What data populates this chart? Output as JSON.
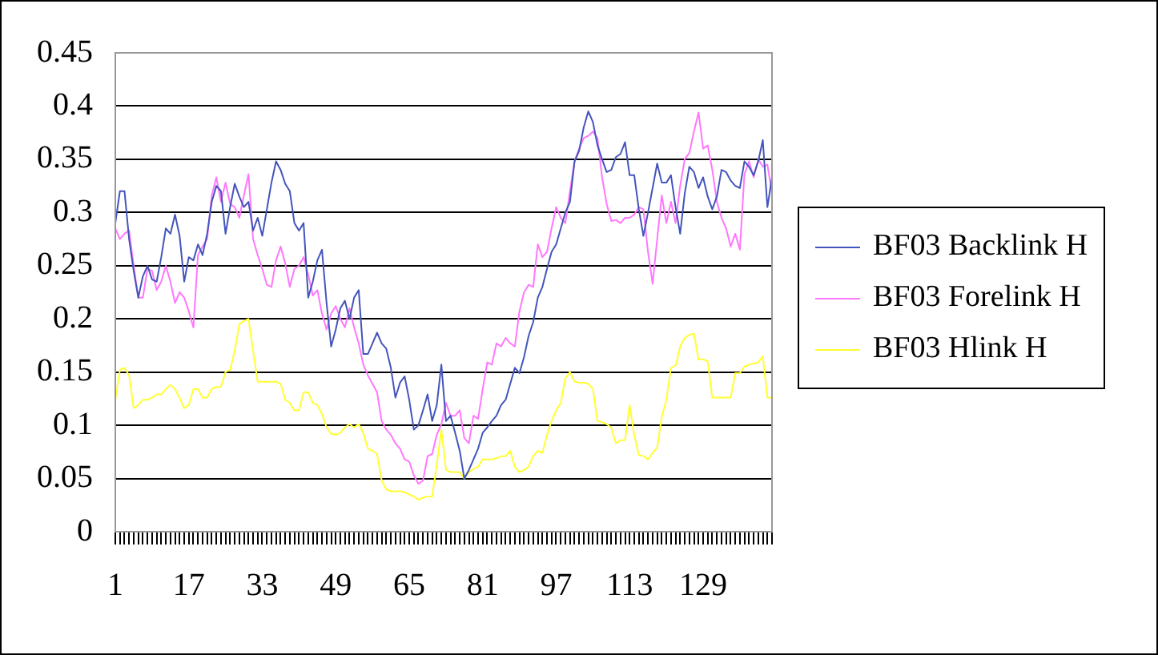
{
  "chart_data": {
    "type": "line",
    "categories": [
      "1",
      null,
      null,
      null,
      null,
      null,
      null,
      null,
      null,
      null,
      null,
      null,
      null,
      null,
      null,
      null,
      "17",
      null,
      null,
      null,
      null,
      null,
      null,
      null,
      null,
      null,
      null,
      null,
      null,
      null,
      null,
      null,
      "33",
      null,
      null,
      null,
      null,
      null,
      null,
      null,
      null,
      null,
      null,
      null,
      null,
      null,
      null,
      null,
      "49",
      null,
      null,
      null,
      null,
      null,
      null,
      null,
      null,
      null,
      null,
      null,
      null,
      null,
      null,
      null,
      "65",
      null,
      null,
      null,
      null,
      null,
      null,
      null,
      null,
      null,
      null,
      null,
      null,
      null,
      null,
      null,
      "81",
      null,
      null,
      null,
      null,
      null,
      null,
      null,
      null,
      null,
      null,
      null,
      null,
      null,
      null,
      null,
      "97",
      null,
      null,
      null,
      null,
      null,
      null,
      null,
      null,
      null,
      null,
      null,
      null,
      null,
      null,
      null,
      "113",
      null,
      null,
      null,
      null,
      null,
      null,
      null,
      null,
      null,
      null,
      null,
      null,
      null,
      null,
      null,
      "129",
      null,
      null,
      null,
      null,
      null,
      null,
      null,
      null,
      null,
      null,
      null,
      null,
      null,
      null,
      null
    ],
    "series": [
      {
        "name": "BF03 Backlink H",
        "color": "#4455bb",
        "values": [
          0.29,
          0.32,
          0.32,
          0.275,
          0.245,
          0.22,
          0.24,
          0.25,
          0.237,
          0.235,
          0.258,
          0.285,
          0.28,
          0.298,
          0.278,
          0.235,
          0.258,
          0.255,
          0.27,
          0.26,
          0.28,
          0.31,
          0.325,
          0.32,
          0.28,
          0.305,
          0.327,
          0.315,
          0.305,
          0.31,
          0.283,
          0.295,
          0.278,
          0.303,
          0.328,
          0.348,
          0.34,
          0.327,
          0.32,
          0.29,
          0.283,
          0.29,
          0.22,
          0.235,
          0.255,
          0.265,
          0.215,
          0.174,
          0.19,
          0.21,
          0.217,
          0.2,
          0.22,
          0.227,
          0.167,
          0.167,
          0.177,
          0.187,
          0.177,
          0.172,
          0.154,
          0.126,
          0.14,
          0.146,
          0.124,
          0.096,
          0.1,
          0.114,
          0.129,
          0.104,
          0.119,
          0.157,
          0.104,
          0.109,
          0.093,
          0.076,
          0.05,
          0.058,
          0.068,
          0.078,
          0.093,
          0.098,
          0.104,
          0.109,
          0.119,
          0.124,
          0.139,
          0.154,
          0.149,
          0.164,
          0.184,
          0.197,
          0.22,
          0.23,
          0.247,
          0.263,
          0.27,
          0.285,
          0.3,
          0.31,
          0.348,
          0.358,
          0.38,
          0.395,
          0.385,
          0.363,
          0.35,
          0.338,
          0.34,
          0.352,
          0.355,
          0.366,
          0.335,
          0.335,
          0.303,
          0.278,
          0.3,
          0.323,
          0.346,
          0.328,
          0.328,
          0.335,
          0.305,
          0.28,
          0.318,
          0.343,
          0.338,
          0.323,
          0.333,
          0.315,
          0.303,
          0.315,
          0.34,
          0.338,
          0.33,
          0.325,
          0.323,
          0.348,
          0.343,
          0.335,
          0.348,
          0.368,
          0.305,
          0.333
        ]
      },
      {
        "name": "BF03 Forelink H",
        "color": "#ff77ff",
        "values": [
          0.285,
          0.275,
          0.28,
          0.283,
          0.25,
          0.22,
          0.22,
          0.247,
          0.245,
          0.227,
          0.235,
          0.25,
          0.235,
          0.215,
          0.225,
          0.22,
          0.207,
          0.192,
          0.26,
          0.268,
          0.275,
          0.316,
          0.333,
          0.31,
          0.328,
          0.308,
          0.305,
          0.295,
          0.316,
          0.336,
          0.275,
          0.26,
          0.247,
          0.232,
          0.23,
          0.255,
          0.268,
          0.252,
          0.23,
          0.247,
          0.25,
          0.258,
          0.242,
          0.222,
          0.227,
          0.205,
          0.19,
          0.205,
          0.212,
          0.2,
          0.192,
          0.21,
          0.192,
          0.177,
          0.157,
          0.147,
          0.139,
          0.131,
          0.104,
          0.096,
          0.091,
          0.083,
          0.078,
          0.068,
          0.066,
          0.053,
          0.045,
          0.048,
          0.071,
          0.073,
          0.091,
          0.101,
          0.121,
          0.109,
          0.109,
          0.114,
          0.088,
          0.083,
          0.109,
          0.106,
          0.134,
          0.159,
          0.157,
          0.177,
          0.174,
          0.182,
          0.177,
          0.174,
          0.207,
          0.225,
          0.232,
          0.23,
          0.27,
          0.258,
          0.263,
          0.285,
          0.305,
          0.295,
          0.29,
          0.32,
          0.348,
          0.36,
          0.37,
          0.372,
          0.376,
          0.37,
          0.333,
          0.308,
          0.292,
          0.293,
          0.29,
          0.295,
          0.295,
          0.298,
          0.305,
          0.303,
          0.263,
          0.233,
          0.275,
          0.316,
          0.29,
          0.31,
          0.29,
          0.325,
          0.35,
          0.356,
          0.376,
          0.394,
          0.36,
          0.363,
          0.34,
          0.31,
          0.295,
          0.285,
          0.268,
          0.28,
          0.265,
          0.336,
          0.348,
          0.333,
          0.35,
          0.343,
          0.345,
          0.318
        ]
      },
      {
        "name": "BF03 Hlink H",
        "color": "#ffff33",
        "values": [
          0.124,
          0.152,
          0.154,
          0.147,
          0.116,
          0.119,
          0.124,
          0.124,
          0.126,
          0.129,
          0.129,
          0.134,
          0.138,
          0.134,
          0.126,
          0.116,
          0.119,
          0.134,
          0.134,
          0.126,
          0.126,
          0.134,
          0.136,
          0.136,
          0.15,
          0.152,
          0.17,
          0.195,
          0.198,
          0.2,
          0.17,
          0.141,
          0.141,
          0.141,
          0.141,
          0.141,
          0.139,
          0.124,
          0.121,
          0.114,
          0.114,
          0.131,
          0.131,
          0.121,
          0.119,
          0.111,
          0.098,
          0.092,
          0.091,
          0.093,
          0.098,
          0.101,
          0.098,
          0.101,
          0.093,
          0.078,
          0.076,
          0.073,
          0.048,
          0.04,
          0.038,
          0.038,
          0.038,
          0.037,
          0.035,
          0.033,
          0.03,
          0.032,
          0.033,
          0.033,
          0.063,
          0.096,
          0.058,
          0.056,
          0.056,
          0.056,
          0.05,
          0.056,
          0.059,
          0.061,
          0.068,
          0.068,
          0.068,
          0.069,
          0.071,
          0.071,
          0.076,
          0.061,
          0.056,
          0.058,
          0.061,
          0.071,
          0.076,
          0.074,
          0.091,
          0.104,
          0.114,
          0.121,
          0.144,
          0.15,
          0.141,
          0.14,
          0.14,
          0.139,
          0.134,
          0.104,
          0.103,
          0.101,
          0.098,
          0.083,
          0.086,
          0.086,
          0.119,
          0.091,
          0.072,
          0.071,
          0.068,
          0.074,
          0.079,
          0.108,
          0.124,
          0.154,
          0.156,
          0.174,
          0.182,
          0.185,
          0.186,
          0.162,
          0.162,
          0.16,
          0.126,
          0.126,
          0.126,
          0.126,
          0.126,
          0.149,
          0.149,
          0.155,
          0.157,
          0.158,
          0.159,
          0.165,
          0.126,
          0.126
        ]
      }
    ],
    "ylim": [
      0,
      0.45
    ],
    "yticks": [
      0,
      0.05,
      0.1,
      0.15,
      0.2,
      0.25,
      0.3,
      0.35,
      0.4,
      0.45
    ],
    "grid": "y",
    "legend": "right",
    "marker": "none",
    "line_style": "solid"
  }
}
